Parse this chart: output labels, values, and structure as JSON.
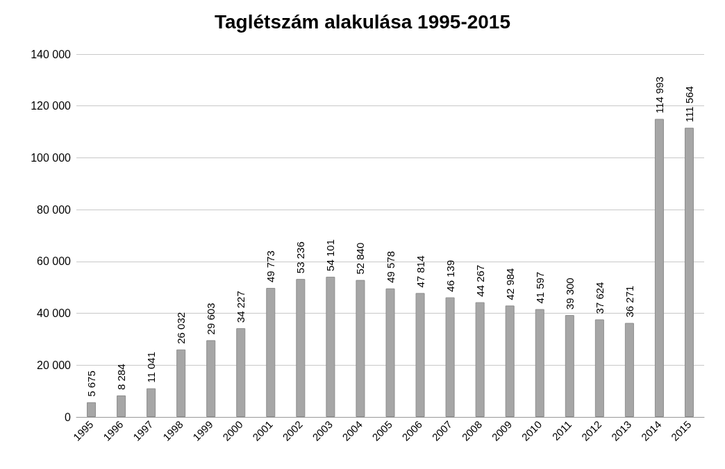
{
  "chart_data": {
    "type": "bar",
    "title": "Taglétszám alakulása 1995-2015",
    "categories": [
      "1995",
      "1996",
      "1997",
      "1998",
      "1999",
      "2000",
      "2001",
      "2002",
      "2003",
      "2004",
      "2005",
      "2006",
      "2007",
      "2008",
      "2009",
      "2010",
      "2011",
      "2012",
      "2013",
      "2014",
      "2015"
    ],
    "values": [
      5675,
      8284,
      11041,
      26032,
      29603,
      34227,
      49773,
      53236,
      54101,
      52840,
      49578,
      47814,
      46139,
      44267,
      42984,
      41597,
      39300,
      37624,
      36271,
      114993,
      111564
    ],
    "value_labels": [
      "5 675",
      "8 284",
      "11 041",
      "26 032",
      "29 603",
      "34 227",
      "49 773",
      "53 236",
      "54 101",
      "52 840",
      "49 578",
      "47 814",
      "46 139",
      "44 267",
      "42 984",
      "41 597",
      "39 300",
      "37 624",
      "36 271",
      "114 993",
      "111 564"
    ],
    "color": "#a6a6a6",
    "ylim": [
      0,
      140000
    ],
    "yticks": [
      {
        "value": 0,
        "label": "0"
      },
      {
        "value": 20000,
        "label": "20 000"
      },
      {
        "value": 40000,
        "label": "40 000"
      },
      {
        "value": 60000,
        "label": "60 000"
      },
      {
        "value": 80000,
        "label": "80 000"
      },
      {
        "value": 100000,
        "label": "100 000"
      },
      {
        "value": 120000,
        "label": "120 000"
      },
      {
        "value": 140000,
        "label": "140 000"
      }
    ],
    "grid": "y"
  }
}
